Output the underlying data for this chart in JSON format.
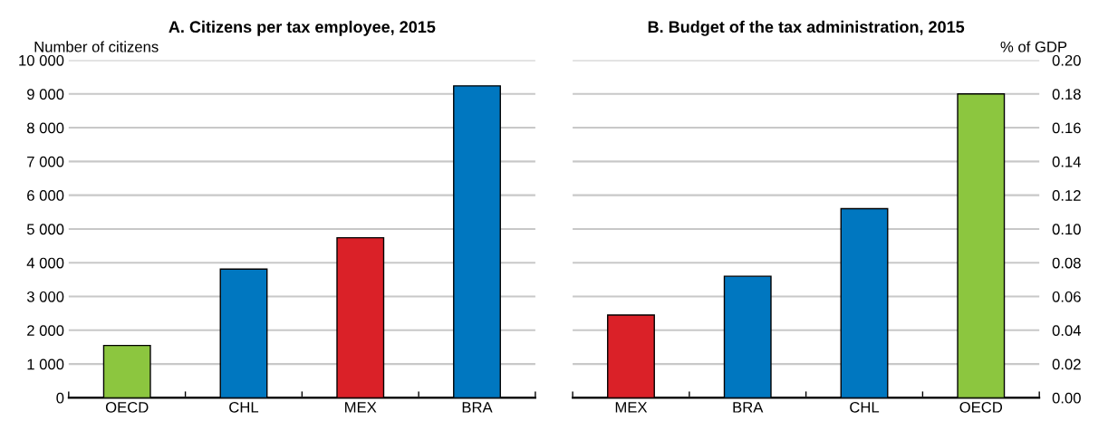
{
  "chart_data": [
    {
      "type": "bar",
      "title": "A. Citizens per tax employee, 2015",
      "ylabel": "Number of citizens",
      "categories": [
        "OECD",
        "CHL",
        "MEX",
        "BRA"
      ],
      "values": [
        1550,
        3810,
        4740,
        9240
      ],
      "colors": [
        "#8cc63f",
        "#0077c0",
        "#da2128",
        "#0077c0"
      ],
      "ylim": [
        0,
        10000
      ],
      "yticks": [
        0,
        {
          "value": 1000,
          "label": "1 000"
        },
        {
          "value": 2000,
          "label": "2 000"
        },
        {
          "value": 3000,
          "label": "3 000"
        },
        {
          "value": 4000,
          "label": "4 000"
        },
        {
          "value": 5000,
          "label": "5 000"
        },
        {
          "value": 6000,
          "label": "6 000"
        },
        {
          "value": 7000,
          "label": "7 000"
        },
        {
          "value": 8000,
          "label": "8 000"
        },
        {
          "value": 9000,
          "label": "9 000"
        },
        {
          "value": 10000,
          "label": "10 000"
        }
      ],
      "grid": "y"
    },
    {
      "type": "bar",
      "title": "B. Budget of the tax administration, 2015",
      "ylabel": "% of GDP",
      "categories": [
        "MEX",
        "BRA",
        "CHL",
        "OECD"
      ],
      "values": [
        0.049,
        0.072,
        0.112,
        0.18
      ],
      "colors": [
        "#da2128",
        "#0077c0",
        "#0077c0",
        "#8cc63f"
      ],
      "ylim": [
        0,
        0.2
      ],
      "yticks": [
        {
          "value": 0,
          "label": "0.00"
        },
        {
          "value": 0.02,
          "label": "0.02"
        },
        {
          "value": 0.04,
          "label": "0.04"
        },
        {
          "value": 0.06,
          "label": "0.06"
        },
        {
          "value": 0.08,
          "label": "0.08"
        },
        {
          "value": 0.1,
          "label": "0.10"
        },
        {
          "value": 0.12,
          "label": "0.12"
        },
        {
          "value": 0.14,
          "label": "0.14"
        },
        {
          "value": 0.16,
          "label": "0.16"
        },
        {
          "value": 0.18,
          "label": "0.18"
        },
        {
          "value": 0.2,
          "label": "0.20"
        }
      ],
      "grid": "y"
    }
  ]
}
